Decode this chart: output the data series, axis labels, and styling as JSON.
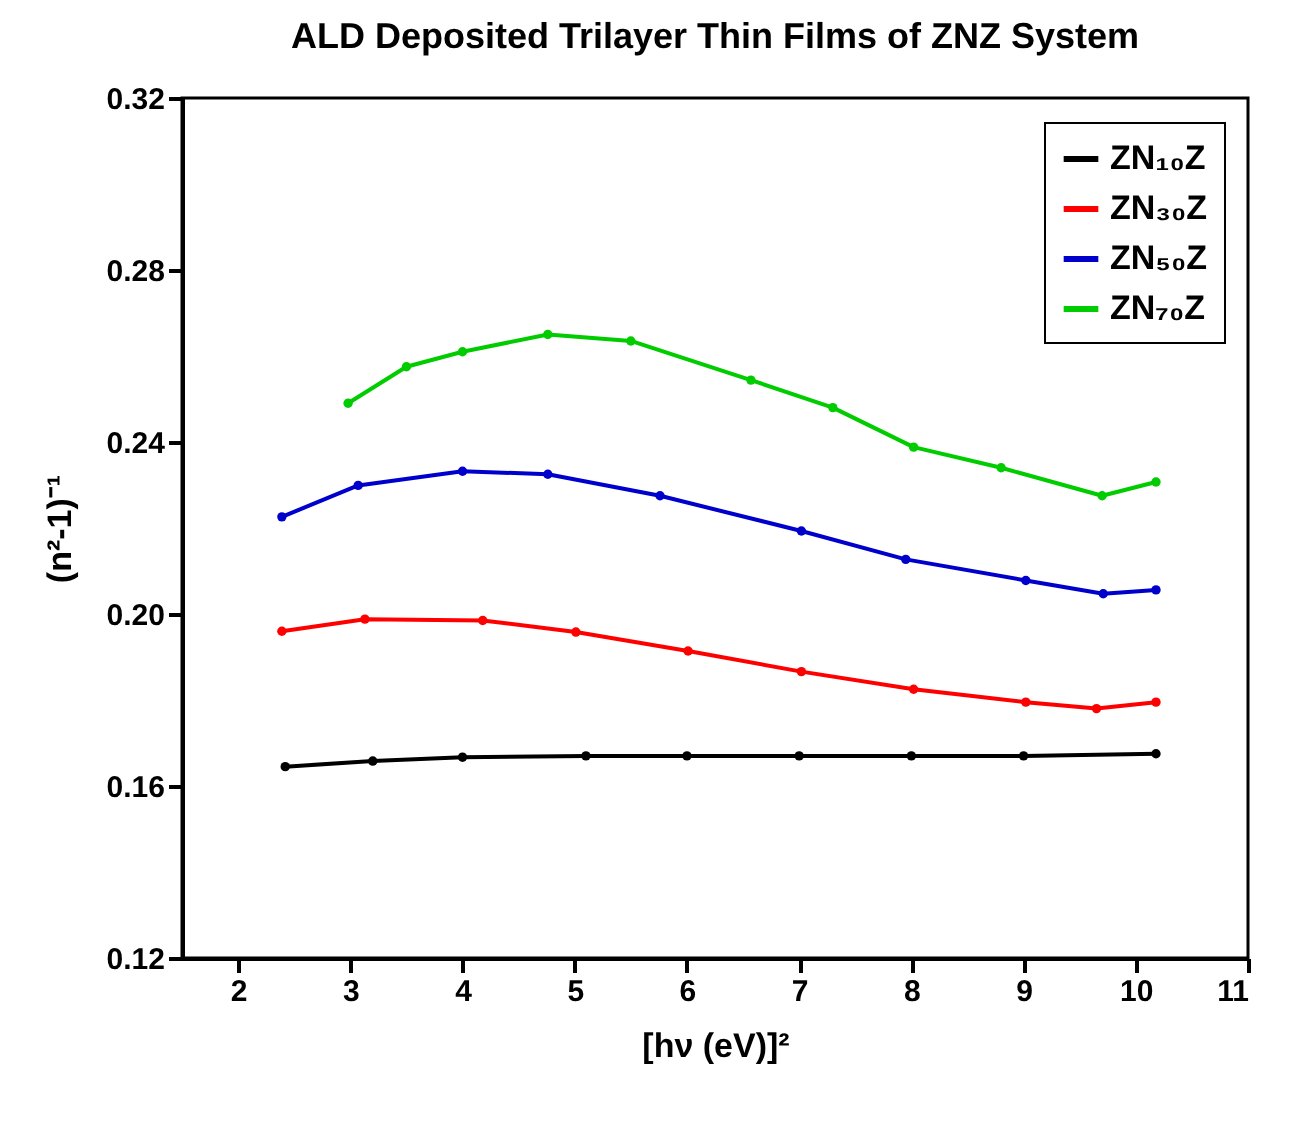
{
  "chart_data": {
    "type": "line",
    "title": "ALD Deposited Trilayer Thin Films of ZNZ System",
    "xlabel": "[hν (eV)]²",
    "ylabel": "(n²-1)⁻¹",
    "xlim": [
      1.5,
      11
    ],
    "xticks": [
      2,
      3,
      4,
      5,
      6,
      7,
      8,
      9,
      10,
      11
    ],
    "ylim": [
      0.12,
      0.32
    ],
    "yticks": [
      0.12,
      0.16,
      {
        "value": 0.2,
        "label": "0.20"
      },
      0.24,
      0.28,
      0.32
    ],
    "grid": false,
    "legend": "top right",
    "marker": "circle",
    "line_style": "solid",
    "series": [
      {
        "name": "ZN₁₀Z",
        "color": "#000000",
        "x": [
          2.42,
          3.2,
          4.0,
          5.1,
          6.0,
          7.0,
          8.0,
          9.0,
          10.18
        ],
        "values": [
          0.1645,
          0.1658,
          0.1667,
          0.167,
          0.167,
          0.167,
          0.167,
          0.167,
          0.1675
        ]
      },
      {
        "name": "ZN₃₀Z",
        "color": "#ff0000",
        "x": [
          2.39,
          3.13,
          4.18,
          5.01,
          6.01,
          7.02,
          8.02,
          9.02,
          9.65,
          10.18
        ],
        "values": [
          0.196,
          0.1988,
          0.1985,
          0.1958,
          0.1914,
          0.1866,
          0.1825,
          0.1795,
          0.178,
          0.1795
        ]
      },
      {
        "name": "ZN₅₀Z",
        "color": "#0000cc",
        "x": [
          2.39,
          3.07,
          4.0,
          4.76,
          5.76,
          7.02,
          7.95,
          9.02,
          9.71,
          10.18
        ],
        "values": [
          0.2226,
          0.2299,
          0.2332,
          0.2325,
          0.2275,
          0.2193,
          0.2127,
          0.2078,
          0.2047,
          0.2056
        ]
      },
      {
        "name": "ZN₇₀Z",
        "color": "#00cc00",
        "x": [
          2.98,
          3.5,
          4.0,
          4.76,
          5.5,
          6.57,
          7.3,
          8.02,
          8.8,
          9.7,
          10.18
        ],
        "values": [
          0.249,
          0.2575,
          0.261,
          0.265,
          0.2635,
          0.2544,
          0.248,
          0.2388,
          0.234,
          0.2275,
          0.2307
        ]
      }
    ]
  }
}
